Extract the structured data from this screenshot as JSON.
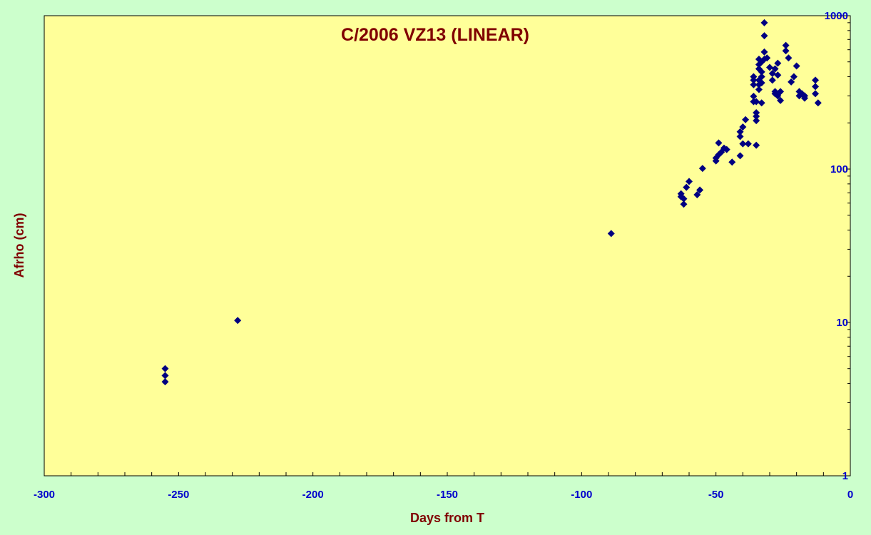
{
  "chart_data": {
    "type": "scatter",
    "title": "C/2006 VZ13 (LINEAR)",
    "xlabel": "Days from T",
    "ylabel": "Afrho (cm)",
    "xlim": [
      -300,
      0
    ],
    "ylim": [
      1,
      1000
    ],
    "yscale": "log",
    "x_ticks": [
      -300,
      -250,
      -200,
      -150,
      -100,
      -50,
      0
    ],
    "x_tick_labels": [
      "-300",
      "-250",
      "-200",
      "-150",
      "-100",
      "-50",
      "0"
    ],
    "y_ticks": [
      1,
      10,
      100,
      1000
    ],
    "y_tick_labels": [
      "1",
      "10",
      "100",
      "1000"
    ],
    "y_axis_position": "right",
    "grid": false,
    "legend": "none",
    "colors": {
      "background": "#ccffcc",
      "plot_area": "#ffff99",
      "marker": "#000080",
      "title": "#800000",
      "tick_labels": "#0000cc"
    },
    "series": [
      {
        "marker": "diamond",
        "points": [
          [
            -255,
            5.0
          ],
          [
            -255,
            4.5
          ],
          [
            -255,
            4.1
          ],
          [
            -228,
            10.3
          ],
          [
            -89,
            38
          ],
          [
            -63,
            66
          ],
          [
            -63,
            69
          ],
          [
            -62,
            64
          ],
          [
            -62,
            59
          ],
          [
            -61,
            76
          ],
          [
            -60,
            83
          ],
          [
            -57,
            68
          ],
          [
            -56,
            73
          ],
          [
            -55,
            101
          ],
          [
            -50,
            113
          ],
          [
            -50,
            118
          ],
          [
            -49,
            124
          ],
          [
            -49,
            148
          ],
          [
            -48,
            129
          ],
          [
            -47,
            137
          ],
          [
            -46,
            134
          ],
          [
            -44,
            111
          ],
          [
            -41,
            122
          ],
          [
            -41,
            163
          ],
          [
            -41,
            175
          ],
          [
            -40,
            188
          ],
          [
            -40,
            146
          ],
          [
            -39,
            210
          ],
          [
            -38,
            146
          ],
          [
            -36,
            298
          ],
          [
            -36,
            275
          ],
          [
            -36,
            355
          ],
          [
            -36,
            380
          ],
          [
            -36,
            400
          ],
          [
            -35,
            221
          ],
          [
            -35,
            207
          ],
          [
            -35,
            233
          ],
          [
            -35,
            275
          ],
          [
            -35,
            143
          ],
          [
            -34,
            330
          ],
          [
            -34,
            355
          ],
          [
            -34,
            380
          ],
          [
            -34,
            450
          ],
          [
            -34,
            480
          ],
          [
            -34,
            520
          ],
          [
            -33,
            270
          ],
          [
            -33,
            365
          ],
          [
            -33,
            400
          ],
          [
            -33,
            430
          ],
          [
            -33,
            500
          ],
          [
            -32,
            520
          ],
          [
            -32,
            580
          ],
          [
            -32,
            740
          ],
          [
            -32,
            900
          ],
          [
            -31,
            530
          ],
          [
            -30,
            460
          ],
          [
            -29,
            380
          ],
          [
            -29,
            420
          ],
          [
            -28,
            320
          ],
          [
            -28,
            310
          ],
          [
            -28,
            450
          ],
          [
            -27,
            490
          ],
          [
            -27,
            300
          ],
          [
            -27,
            410
          ],
          [
            -26,
            280
          ],
          [
            -26,
            320
          ],
          [
            -24,
            640
          ],
          [
            -24,
            590
          ],
          [
            -23,
            530
          ],
          [
            -22,
            370
          ],
          [
            -21,
            400
          ],
          [
            -20,
            470
          ],
          [
            -19,
            300
          ],
          [
            -19,
            320
          ],
          [
            -18,
            310
          ],
          [
            -17,
            290
          ],
          [
            -17,
            300
          ],
          [
            -13,
            380
          ],
          [
            -13,
            345
          ],
          [
            -13,
            310
          ],
          [
            -12,
            270
          ]
        ]
      }
    ]
  }
}
